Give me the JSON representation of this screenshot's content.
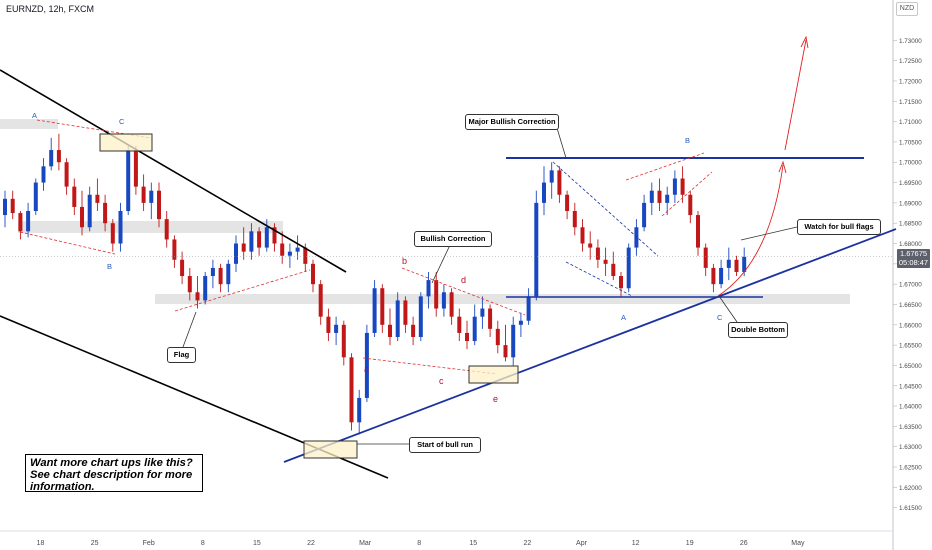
{
  "symbol": "EURNZD, 12h, FXCM",
  "currency": "NZD",
  "price_tag": {
    "price": "1.67675",
    "countdown": "05:08:47"
  },
  "promo_text": "Want more chart ups like this? See chart description for more information.",
  "callouts": {
    "major": "Major Bullish Correction",
    "bullish": "Bullish Correction",
    "flag": "Flag",
    "start": "Start of bull run",
    "double": "Double Bottom",
    "watch": "Watch for bull flags"
  },
  "wave_labels": [
    {
      "id": "A1",
      "text": "A"
    },
    {
      "id": "C1",
      "text": "C"
    },
    {
      "id": "B1",
      "text": "B"
    },
    {
      "id": "b2",
      "text": "b"
    },
    {
      "id": "d2",
      "text": "d"
    },
    {
      "id": "a2",
      "text": "a"
    },
    {
      "id": "c2",
      "text": "c"
    },
    {
      "id": "e2",
      "text": "e"
    },
    {
      "id": "B3",
      "text": "B"
    },
    {
      "id": "A3",
      "text": "A"
    },
    {
      "id": "C3",
      "text": "C"
    }
  ],
  "colors": {
    "bull": "#1848c0",
    "bear": "#c01818",
    "trend": "#1b33a0",
    "zone": "#e4e4e4",
    "box": "#fdf2c8",
    "projection": "#e02020"
  },
  "chart_data": {
    "type": "candlestick",
    "symbol": "EURNZD",
    "timeframe": "12h",
    "ylim": [
      1.61,
      1.735
    ],
    "y_ticks": [
      "1.61500",
      "1.62000",
      "1.62500",
      "1.63000",
      "1.63500",
      "1.64000",
      "1.64500",
      "1.65000",
      "1.65500",
      "1.66000",
      "1.66500",
      "1.67000",
      "1.67500",
      "1.68000",
      "1.68500",
      "1.69000",
      "1.69500",
      "1.70000",
      "1.70500",
      "1.71000",
      "1.71500",
      "1.72000",
      "1.72500",
      "1.73000"
    ],
    "x_ticks": [
      "18",
      "25",
      "Feb",
      "8",
      "15",
      "22",
      "Mar",
      "8",
      "15",
      "22",
      "Apr",
      "12",
      "19",
      "26",
      "May"
    ],
    "last_price": 1.67675,
    "candles": [
      [
        1.687,
        1.693,
        1.684,
        1.691
      ],
      [
        1.691,
        1.693,
        1.686,
        1.6875
      ],
      [
        1.6875,
        1.688,
        1.681,
        1.683
      ],
      [
        1.683,
        1.69,
        1.6815,
        1.688
      ],
      [
        1.688,
        1.696,
        1.687,
        1.695
      ],
      [
        1.695,
        1.701,
        1.693,
        1.699
      ],
      [
        1.699,
        1.706,
        1.698,
        1.703
      ],
      [
        1.703,
        1.707,
        1.698,
        1.7
      ],
      [
        1.7,
        1.701,
        1.692,
        1.694
      ],
      [
        1.694,
        1.696,
        1.687,
        1.689
      ],
      [
        1.689,
        1.693,
        1.682,
        1.684
      ],
      [
        1.684,
        1.694,
        1.683,
        1.692
      ],
      [
        1.692,
        1.696,
        1.688,
        1.69
      ],
      [
        1.69,
        1.692,
        1.683,
        1.685
      ],
      [
        1.685,
        1.686,
        1.678,
        1.68
      ],
      [
        1.68,
        1.69,
        1.678,
        1.688
      ],
      [
        1.688,
        1.704,
        1.687,
        1.703
      ],
      [
        1.703,
        1.704,
        1.692,
        1.694
      ],
      [
        1.694,
        1.697,
        1.688,
        1.69
      ],
      [
        1.69,
        1.695,
        1.686,
        1.693
      ],
      [
        1.693,
        1.695,
        1.684,
        1.686
      ],
      [
        1.686,
        1.688,
        1.679,
        1.681
      ],
      [
        1.681,
        1.682,
        1.674,
        1.676
      ],
      [
        1.676,
        1.678,
        1.67,
        1.672
      ],
      [
        1.672,
        1.674,
        1.666,
        1.668
      ],
      [
        1.668,
        1.672,
        1.664,
        1.666
      ],
      [
        1.666,
        1.673,
        1.665,
        1.672
      ],
      [
        1.672,
        1.676,
        1.669,
        1.674
      ],
      [
        1.674,
        1.675,
        1.668,
        1.67
      ],
      [
        1.67,
        1.676,
        1.668,
        1.675
      ],
      [
        1.675,
        1.682,
        1.673,
        1.68
      ],
      [
        1.68,
        1.684,
        1.676,
        1.678
      ],
      [
        1.678,
        1.685,
        1.676,
        1.683
      ],
      [
        1.683,
        1.684,
        1.677,
        1.679
      ],
      [
        1.679,
        1.686,
        1.678,
        1.684
      ],
      [
        1.684,
        1.685,
        1.678,
        1.68
      ],
      [
        1.68,
        1.683,
        1.675,
        1.677
      ],
      [
        1.677,
        1.68,
        1.674,
        1.678
      ],
      [
        1.678,
        1.682,
        1.676,
        1.679
      ],
      [
        1.679,
        1.68,
        1.673,
        1.675
      ],
      [
        1.675,
        1.676,
        1.668,
        1.67
      ],
      [
        1.67,
        1.671,
        1.66,
        1.662
      ],
      [
        1.662,
        1.664,
        1.656,
        1.658
      ],
      [
        1.658,
        1.662,
        1.655,
        1.66
      ],
      [
        1.66,
        1.661,
        1.65,
        1.652
      ],
      [
        1.652,
        1.653,
        1.634,
        1.636
      ],
      [
        1.636,
        1.644,
        1.633,
        1.642
      ],
      [
        1.642,
        1.66,
        1.641,
        1.658
      ],
      [
        1.658,
        1.671,
        1.657,
        1.669
      ],
      [
        1.669,
        1.67,
        1.658,
        1.66
      ],
      [
        1.66,
        1.664,
        1.655,
        1.657
      ],
      [
        1.657,
        1.668,
        1.656,
        1.666
      ],
      [
        1.666,
        1.667,
        1.658,
        1.66
      ],
      [
        1.66,
        1.662,
        1.655,
        1.657
      ],
      [
        1.657,
        1.668,
        1.656,
        1.667
      ],
      [
        1.667,
        1.673,
        1.664,
        1.671
      ],
      [
        1.671,
        1.673,
        1.662,
        1.664
      ],
      [
        1.664,
        1.67,
        1.662,
        1.668
      ],
      [
        1.668,
        1.669,
        1.66,
        1.662
      ],
      [
        1.662,
        1.664,
        1.656,
        1.658
      ],
      [
        1.658,
        1.661,
        1.654,
        1.656
      ],
      [
        1.656,
        1.665,
        1.655,
        1.662
      ],
      [
        1.662,
        1.667,
        1.659,
        1.664
      ],
      [
        1.664,
        1.665,
        1.657,
        1.659
      ],
      [
        1.659,
        1.661,
        1.653,
        1.655
      ],
      [
        1.655,
        1.66,
        1.651,
        1.652
      ],
      [
        1.652,
        1.662,
        1.65,
        1.66
      ],
      [
        1.66,
        1.663,
        1.657,
        1.661
      ],
      [
        1.661,
        1.669,
        1.66,
        1.667
      ],
      [
        1.667,
        1.693,
        1.666,
        1.69
      ],
      [
        1.69,
        1.699,
        1.687,
        1.695
      ],
      [
        1.695,
        1.7,
        1.691,
        1.698
      ],
      [
        1.698,
        1.699,
        1.69,
        1.692
      ],
      [
        1.692,
        1.693,
        1.686,
        1.688
      ],
      [
        1.688,
        1.69,
        1.682,
        1.684
      ],
      [
        1.684,
        1.686,
        1.678,
        1.68
      ],
      [
        1.68,
        1.683,
        1.676,
        1.679
      ],
      [
        1.679,
        1.681,
        1.674,
        1.676
      ],
      [
        1.676,
        1.679,
        1.672,
        1.675
      ],
      [
        1.675,
        1.678,
        1.671,
        1.672
      ],
      [
        1.672,
        1.673,
        1.667,
        1.669
      ],
      [
        1.669,
        1.68,
        1.668,
        1.679
      ],
      [
        1.679,
        1.686,
        1.677,
        1.684
      ],
      [
        1.684,
        1.692,
        1.683,
        1.69
      ],
      [
        1.69,
        1.695,
        1.687,
        1.693
      ],
      [
        1.693,
        1.696,
        1.688,
        1.69
      ],
      [
        1.69,
        1.694,
        1.687,
        1.692
      ],
      [
        1.692,
        1.698,
        1.69,
        1.696
      ],
      [
        1.696,
        1.699,
        1.69,
        1.692
      ],
      [
        1.692,
        1.693,
        1.685,
        1.687
      ],
      [
        1.687,
        1.688,
        1.677,
        1.679
      ],
      [
        1.679,
        1.68,
        1.672,
        1.674
      ],
      [
        1.674,
        1.675,
        1.668,
        1.67
      ],
      [
        1.67,
        1.676,
        1.669,
        1.674
      ],
      [
        1.674,
        1.679,
        1.671,
        1.676
      ],
      [
        1.676,
        1.677,
        1.672,
        1.673
      ],
      [
        1.673,
        1.679,
        1.672,
        1.67675
      ]
    ]
  }
}
